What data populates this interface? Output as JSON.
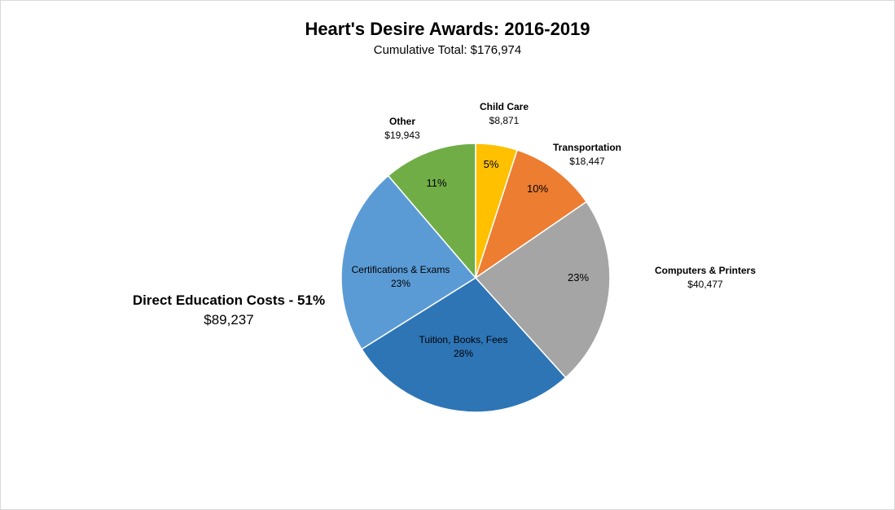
{
  "chart_data": {
    "type": "pie",
    "title": "Heart's Desire Awards: 2016-2019",
    "subtitle": "Cumulative Total: $176,974",
    "slices": [
      {
        "name": "Child Care",
        "value_label": "$8,871",
        "value": 8871,
        "pct_label": "5%",
        "color": "#ffc000"
      },
      {
        "name": "Transportation",
        "value_label": "$18,447",
        "value": 18447,
        "pct_label": "10%",
        "color": "#ed7d31"
      },
      {
        "name": "Computers & Printers",
        "value_label": "$40,477",
        "value": 40477,
        "pct_label": "23%",
        "color": "#a5a5a5"
      },
      {
        "name": "Tuition, Books, Fees",
        "value_label": "",
        "value": 49192,
        "pct_label": "28%",
        "color": "#2e75b6"
      },
      {
        "name": "Certifications & Exams",
        "value_label": "",
        "value": 40045,
        "pct_label": "23%",
        "color": "#5b9bd5"
      },
      {
        "name": "Other",
        "value_label": "$19,943",
        "value": 19943,
        "pct_label": "11%",
        "color": "#70ad47"
      }
    ],
    "group_annotation": {
      "label": "Direct Education Costs - 51%",
      "value": "$89,237"
    }
  }
}
